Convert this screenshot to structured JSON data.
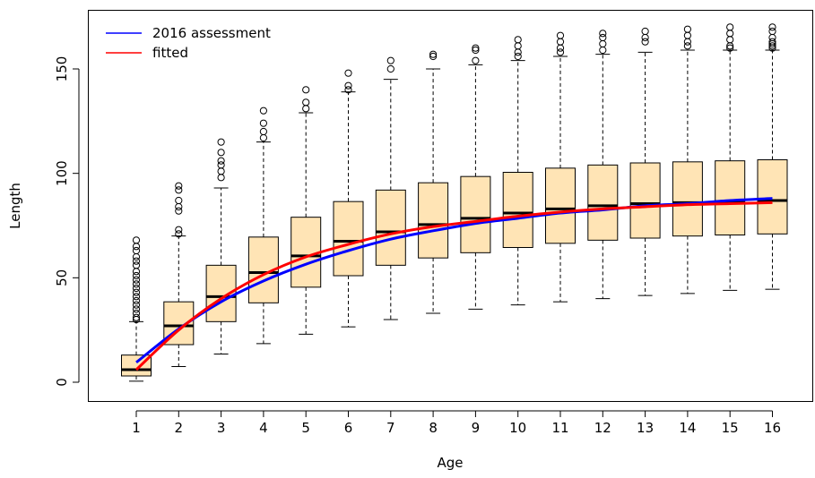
{
  "chart_data": {
    "type": "box",
    "xlabel": "Age",
    "ylabel": "Length",
    "ylim": [
      -8,
      175
    ],
    "y_ticks": [
      0,
      50,
      100,
      150
    ],
    "categories": [
      "1",
      "2",
      "3",
      "4",
      "5",
      "6",
      "7",
      "8",
      "9",
      "10",
      "11",
      "12",
      "13",
      "14",
      "15",
      "16"
    ],
    "box_fill": "#FFE4B5",
    "boxes": [
      {
        "age": 1,
        "whisker_low": 0.5,
        "q1": 3,
        "median": 6,
        "q3": 13,
        "whisker_high": 29,
        "outliers": [
          30,
          31,
          33,
          35,
          37,
          39,
          41,
          43,
          45,
          47,
          49,
          51,
          53,
          56,
          58,
          60,
          63,
          65,
          68
        ]
      },
      {
        "age": 2,
        "whisker_low": 7.5,
        "q1": 18,
        "median": 27,
        "q3": 38.5,
        "whisker_high": 70,
        "outliers": [
          71,
          73,
          82,
          84,
          87,
          92,
          94
        ]
      },
      {
        "age": 3,
        "whisker_low": 13.5,
        "q1": 29,
        "median": 41,
        "q3": 56,
        "whisker_high": 93,
        "outliers": [
          98,
          101,
          104,
          106,
          110,
          115
        ]
      },
      {
        "age": 4,
        "whisker_low": 18.5,
        "q1": 38,
        "median": 52.5,
        "q3": 69.5,
        "whisker_high": 115,
        "outliers": [
          117,
          120,
          124,
          130
        ]
      },
      {
        "age": 5,
        "whisker_low": 23,
        "q1": 45.5,
        "median": 60.5,
        "q3": 79,
        "whisker_high": 129,
        "outliers": [
          131,
          134,
          140
        ]
      },
      {
        "age": 6,
        "whisker_low": 26.5,
        "q1": 51,
        "median": 67.5,
        "q3": 86.5,
        "whisker_high": 139,
        "outliers": [
          140,
          142,
          148
        ]
      },
      {
        "age": 7,
        "whisker_low": 30,
        "q1": 56,
        "median": 72,
        "q3": 92,
        "whisker_high": 145,
        "outliers": [
          150,
          154
        ]
      },
      {
        "age": 8,
        "whisker_low": 33,
        "q1": 59.5,
        "median": 75.5,
        "q3": 95.5,
        "whisker_high": 150,
        "outliers": [
          156,
          157
        ]
      },
      {
        "age": 9,
        "whisker_low": 35,
        "q1": 62,
        "median": 78.5,
        "q3": 98.5,
        "whisker_high": 152,
        "outliers": [
          154,
          159,
          160
        ]
      },
      {
        "age": 10,
        "whisker_low": 37,
        "q1": 64.5,
        "median": 81,
        "q3": 100.5,
        "whisker_high": 154,
        "outliers": [
          156,
          158,
          161,
          164
        ]
      },
      {
        "age": 11,
        "whisker_low": 38.5,
        "q1": 66.5,
        "median": 83,
        "q3": 102.5,
        "whisker_high": 156,
        "outliers": [
          158,
          160,
          163,
          166
        ]
      },
      {
        "age": 12,
        "whisker_low": 40,
        "q1": 68,
        "median": 84.5,
        "q3": 104,
        "whisker_high": 157,
        "outliers": [
          159,
          162,
          165,
          167
        ]
      },
      {
        "age": 13,
        "whisker_low": 41.5,
        "q1": 69,
        "median": 85.5,
        "q3": 105,
        "whisker_high": 158,
        "outliers": [
          163,
          165,
          168
        ]
      },
      {
        "age": 14,
        "whisker_low": 42.5,
        "q1": 70,
        "median": 86,
        "q3": 105.5,
        "whisker_high": 159,
        "outliers": [
          161,
          163,
          166,
          169
        ]
      },
      {
        "age": 15,
        "whisker_low": 44,
        "q1": 70.5,
        "median": 86.5,
        "q3": 106,
        "whisker_high": 159,
        "outliers": [
          160,
          161,
          164,
          167,
          170
        ]
      },
      {
        "age": 16,
        "whisker_low": 44.5,
        "q1": 71,
        "median": 87,
        "q3": 106.5,
        "whisker_high": 159,
        "outliers": [
          160,
          161,
          162,
          163,
          165,
          168,
          170
        ]
      }
    ],
    "series": [
      {
        "name": "2016 assessment",
        "color": "#0000FF",
        "x": [
          1,
          2,
          3,
          4,
          5,
          6,
          7,
          8,
          9,
          10,
          11,
          12,
          13,
          14,
          15,
          16
        ],
        "y": [
          9.5,
          25.5,
          38.5,
          48.5,
          56.5,
          63,
          68.5,
          72.5,
          76,
          78.5,
          81,
          82.5,
          84.5,
          85.5,
          87,
          88
        ]
      },
      {
        "name": "fitted",
        "color": "#FF0000",
        "x": [
          1,
          2,
          3,
          4,
          5,
          6,
          7,
          8,
          9,
          10,
          11,
          12,
          13,
          14,
          15,
          16
        ],
        "y": [
          6,
          25,
          40,
          51.5,
          60,
          66,
          71,
          74.5,
          77,
          79.5,
          81.5,
          83,
          84,
          85,
          85.5,
          86
        ]
      }
    ],
    "legend": {
      "position": "top-left",
      "entries": [
        "2016 assessment",
        "fitted"
      ]
    }
  }
}
